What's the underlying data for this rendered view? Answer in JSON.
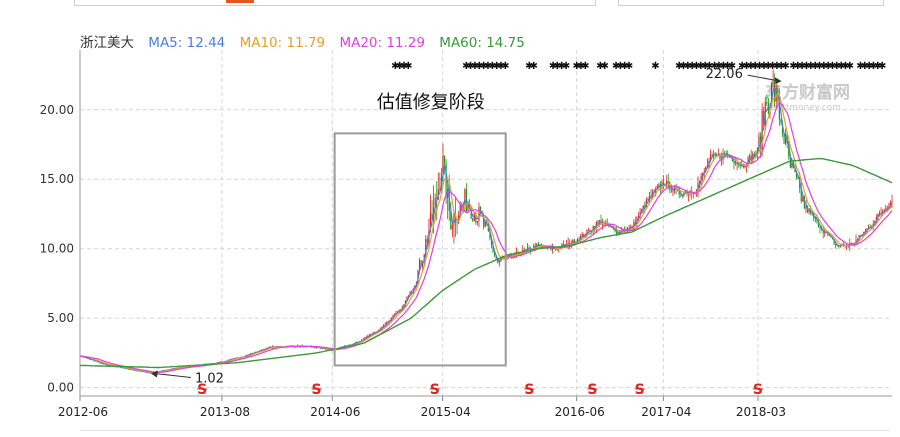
{
  "stock_name": "浙江美大",
  "legend": [
    {
      "label": "MA5",
      "value": "12.44",
      "color": "#4a7ee0"
    },
    {
      "label": "MA10",
      "value": "11.79",
      "color": "#e8a020"
    },
    {
      "label": "MA20",
      "value": "11.29",
      "color": "#e040e0"
    },
    {
      "label": "MA60",
      "value": "14.75",
      "color": "#3a9a3a"
    }
  ],
  "watermark": "东方财富网 eastmoney.com",
  "chart_data": {
    "type": "candlestick",
    "title": "",
    "ylim": [
      -0.6,
      24.3
    ],
    "y_ticks": [
      "0.00",
      "5.00",
      "10.00",
      "15.00",
      "20.00"
    ],
    "y_tick_values": [
      0,
      5,
      10,
      15,
      20
    ],
    "x_ticks": [
      "2012-06",
      "2013-08",
      "2014-06",
      "2015-04",
      "2016-06",
      "2017-04",
      "2018-03"
    ],
    "x_tick_positions": [
      0,
      18,
      32,
      46,
      63,
      74,
      86
    ],
    "x_range": [
      0,
      103
    ],
    "close_keypoints": [
      [
        0,
        2.3
      ],
      [
        3,
        1.7
      ],
      [
        6,
        1.35
      ],
      [
        9,
        1.05
      ],
      [
        12,
        1.4
      ],
      [
        15,
        1.6
      ],
      [
        18,
        1.85
      ],
      [
        21,
        2.3
      ],
      [
        24,
        2.9
      ],
      [
        27,
        3.0
      ],
      [
        30,
        2.9
      ],
      [
        32,
        2.7
      ],
      [
        35,
        3.2
      ],
      [
        38,
        4.2
      ],
      [
        41,
        5.8
      ],
      [
        43,
        8.5
      ],
      [
        45,
        13.0
      ],
      [
        46,
        16.2
      ],
      [
        47,
        12.0
      ],
      [
        49,
        13.5
      ],
      [
        51,
        12.0
      ],
      [
        53,
        9.0
      ],
      [
        55,
        9.5
      ],
      [
        58,
        10.2
      ],
      [
        60,
        10.0
      ],
      [
        62,
        10.3
      ],
      [
        64,
        11.0
      ],
      [
        66,
        12.0
      ],
      [
        68,
        11.2
      ],
      [
        70,
        11.5
      ],
      [
        72,
        13.5
      ],
      [
        74,
        14.8
      ],
      [
        76,
        14.0
      ],
      [
        78,
        14.2
      ],
      [
        80,
        16.5
      ],
      [
        82,
        16.8
      ],
      [
        84,
        16.0
      ],
      [
        86,
        17.0
      ],
      [
        87,
        20.5
      ],
      [
        88,
        21.5
      ],
      [
        89,
        19.0
      ],
      [
        90,
        16.0
      ],
      [
        92,
        13.0
      ],
      [
        94,
        11.5
      ],
      [
        96,
        10.2
      ],
      [
        98,
        10.3
      ],
      [
        100,
        11.5
      ],
      [
        101,
        12.2
      ],
      [
        103,
        13.5
      ]
    ],
    "ma60_keypoints": [
      [
        0,
        1.6
      ],
      [
        10,
        1.45
      ],
      [
        20,
        1.8
      ],
      [
        30,
        2.5
      ],
      [
        36,
        3.2
      ],
      [
        42,
        5.0
      ],
      [
        46,
        7.0
      ],
      [
        50,
        8.5
      ],
      [
        54,
        9.5
      ],
      [
        58,
        10.0
      ],
      [
        62,
        10.2
      ],
      [
        66,
        10.8
      ],
      [
        70,
        11.2
      ],
      [
        74,
        12.3
      ],
      [
        78,
        13.3
      ],
      [
        82,
        14.3
      ],
      [
        86,
        15.3
      ],
      [
        90,
        16.3
      ],
      [
        94,
        16.5
      ],
      [
        98,
        16.0
      ],
      [
        103,
        14.75
      ]
    ],
    "annotations": [
      {
        "text": "22.06",
        "x": 89,
        "y": 22.06
      },
      {
        "text": "1.02",
        "x": 9,
        "y": 1.02
      },
      {
        "text": "估值修复阶段",
        "x": 44.5,
        "y": 20.0
      }
    ],
    "highlight_box": {
      "x0": 32.3,
      "x1": 54,
      "y0": 1.6,
      "y1": 18.3
    },
    "event_marks_x": [
      15.5,
      30,
      45,
      57,
      65,
      71,
      86
    ]
  }
}
